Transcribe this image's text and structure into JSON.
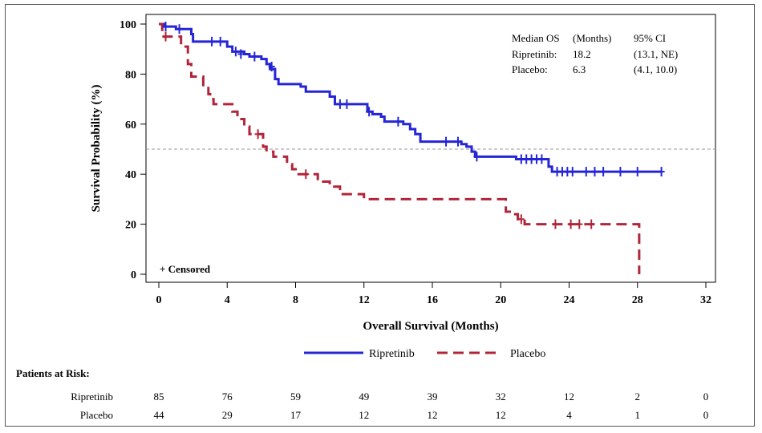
{
  "chart_data": {
    "type": "line",
    "subtype": "kaplan-meier",
    "xlabel": "Overall Survival (Months)",
    "ylabel": "Survival Probability (%)",
    "xlim": [
      0,
      32
    ],
    "ylim": [
      0,
      100
    ],
    "x_ticks": [
      0,
      4,
      8,
      12,
      16,
      20,
      24,
      28,
      32
    ],
    "y_ticks": [
      0,
      20,
      40,
      60,
      80,
      100
    ],
    "grid": false,
    "reference_line": {
      "y": 50,
      "style": "dashed",
      "color": "#999999"
    },
    "censor_note": "+ Censored",
    "annotation": {
      "header": [
        "Median OS",
        "(Months)",
        "95% CI"
      ],
      "rows": [
        [
          "Ripretinib:",
          "18.2",
          "(13.1, NE)"
        ],
        [
          "Placebo:",
          "6.3",
          "(4.1, 10.0)"
        ]
      ]
    },
    "legend_position": "bottom",
    "series": [
      {
        "name": "Ripretinib",
        "color": "#2525d6",
        "line_style": "solid",
        "steps": [
          [
            0,
            100
          ],
          [
            0.3,
            99
          ],
          [
            1.0,
            98
          ],
          [
            1.9,
            96
          ],
          [
            2.0,
            93
          ],
          [
            4.0,
            91
          ],
          [
            4.3,
            89
          ],
          [
            5.0,
            88
          ],
          [
            5.3,
            87
          ],
          [
            6.0,
            86
          ],
          [
            6.3,
            84
          ],
          [
            6.5,
            82
          ],
          [
            6.8,
            78
          ],
          [
            7.0,
            76
          ],
          [
            8.3,
            75
          ],
          [
            8.6,
            73
          ],
          [
            10.0,
            71
          ],
          [
            10.3,
            68
          ],
          [
            12.2,
            65
          ],
          [
            12.5,
            64
          ],
          [
            13.0,
            63
          ],
          [
            13.2,
            61
          ],
          [
            14.3,
            60
          ],
          [
            14.7,
            58
          ],
          [
            15.0,
            56
          ],
          [
            15.3,
            53
          ],
          [
            17.7,
            52
          ],
          [
            18.0,
            51
          ],
          [
            18.3,
            49
          ],
          [
            18.5,
            47
          ],
          [
            20.9,
            46
          ],
          [
            22.8,
            43
          ],
          [
            23.0,
            41
          ]
        ],
        "end_x": 29.4,
        "censored": [
          [
            0.4,
            99
          ],
          [
            1.2,
            98
          ],
          [
            3.1,
            93
          ],
          [
            3.6,
            93
          ],
          [
            4.5,
            89
          ],
          [
            4.8,
            88
          ],
          [
            5.6,
            87
          ],
          [
            6.6,
            83
          ],
          [
            10.6,
            68
          ],
          [
            11.0,
            68
          ],
          [
            12.3,
            65
          ],
          [
            14.0,
            61
          ],
          [
            16.8,
            53
          ],
          [
            17.5,
            53
          ],
          [
            18.6,
            47
          ],
          [
            21.2,
            46
          ],
          [
            21.5,
            46
          ],
          [
            21.8,
            46
          ],
          [
            22.1,
            46
          ],
          [
            22.4,
            46
          ],
          [
            23.3,
            41
          ],
          [
            23.6,
            41
          ],
          [
            23.9,
            41
          ],
          [
            24.2,
            41
          ],
          [
            25.0,
            41
          ],
          [
            25.5,
            41
          ],
          [
            26.0,
            41
          ],
          [
            27.0,
            41
          ],
          [
            28.0,
            41
          ],
          [
            29.4,
            41
          ]
        ]
      },
      {
        "name": "Placebo",
        "color": "#b0253a",
        "line_style": "dashed",
        "steps": [
          [
            0,
            100
          ],
          [
            0.2,
            95
          ],
          [
            1.3,
            91
          ],
          [
            1.7,
            84
          ],
          [
            1.9,
            79
          ],
          [
            2.6,
            75
          ],
          [
            2.9,
            72
          ],
          [
            3.0,
            70
          ],
          [
            3.2,
            68
          ],
          [
            4.3,
            65
          ],
          [
            4.6,
            62
          ],
          [
            5.0,
            59
          ],
          [
            5.3,
            56
          ],
          [
            6.1,
            51
          ],
          [
            6.3,
            49
          ],
          [
            6.7,
            47
          ],
          [
            7.5,
            44
          ],
          [
            7.8,
            42
          ],
          [
            8.0,
            40
          ],
          [
            9.3,
            37
          ],
          [
            10.0,
            35
          ],
          [
            10.6,
            32
          ],
          [
            12.0,
            30
          ],
          [
            20.3,
            25
          ],
          [
            20.7,
            24
          ],
          [
            21.0,
            22
          ],
          [
            21.4,
            20
          ],
          [
            28.1,
            0
          ]
        ],
        "end_x": 28.1,
        "censored": [
          [
            0.4,
            95
          ],
          [
            5.8,
            56
          ],
          [
            8.6,
            40
          ],
          [
            21.2,
            22
          ],
          [
            23.2,
            20
          ],
          [
            24.1,
            20
          ],
          [
            24.6,
            20
          ],
          [
            25.3,
            20
          ]
        ]
      }
    ]
  },
  "risk_table": {
    "title": "Patients at Risk:",
    "rows": [
      {
        "label": "Ripretinib",
        "values": [
          "85",
          "76",
          "59",
          "49",
          "39",
          "32",
          "12",
          "2",
          "0"
        ]
      },
      {
        "label": "Placebo",
        "values": [
          "44",
          "29",
          "17",
          "12",
          "12",
          "12",
          "4",
          "1",
          "0"
        ]
      }
    ]
  },
  "colors": {
    "ripretinib": "#2525d6",
    "placebo": "#b0253a",
    "reference": "#999999"
  }
}
